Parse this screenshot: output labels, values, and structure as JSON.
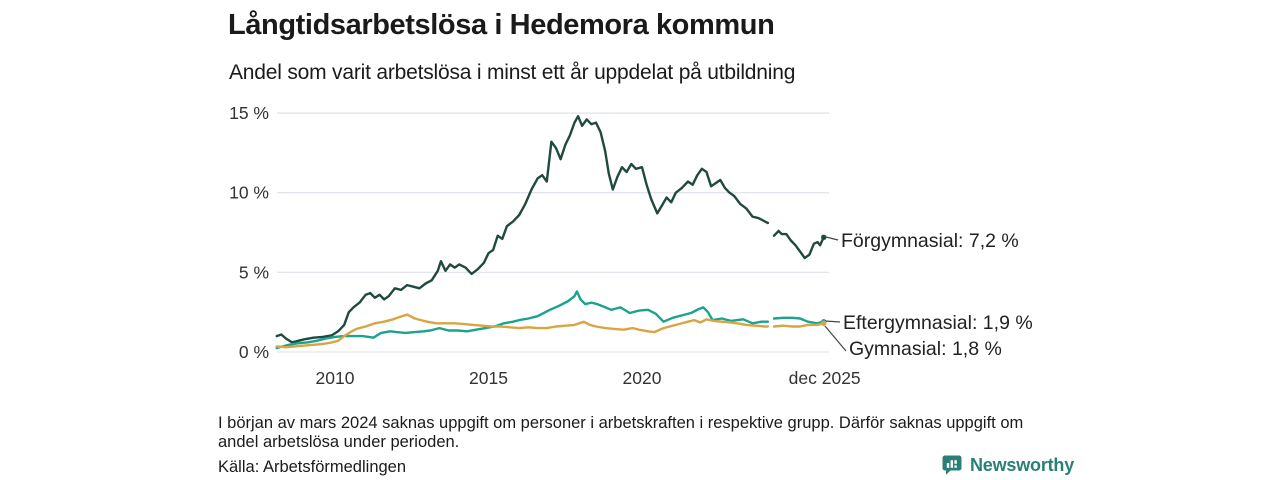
{
  "header": {
    "title": "Långtidsarbetslösa i Hedemora kommun",
    "subtitle": "Andel som varit arbetslösa i minst ett år uppdelat på utbildning"
  },
  "chart_data": {
    "type": "line",
    "title": "Långtidsarbetslösa i Hedemora kommun",
    "subtitle": "Andel som varit arbetslösa i minst ett år uppdelat på utbildning",
    "xlabel": "",
    "ylabel": "",
    "ylim": [
      0,
      15
    ],
    "xlim_years": [
      2008.0,
      2026.2
    ],
    "grid": "horizontal",
    "legend_position": "end-of-line-labels",
    "y_ticks": [
      {
        "value": 0,
        "label": "0 %"
      },
      {
        "value": 5,
        "label": "5 %"
      },
      {
        "value": 10,
        "label": "10 %"
      },
      {
        "value": 15,
        "label": "15 %"
      }
    ],
    "x_ticks": [
      {
        "year": 2010,
        "label": "2010"
      },
      {
        "year": 2015,
        "label": "2015"
      },
      {
        "year": 2020,
        "label": "2020"
      },
      {
        "year": 2025.95,
        "label": "dec 2025"
      }
    ],
    "data_gap_years": [
      2024.1,
      2024.3
    ],
    "series": [
      {
        "name": "Förgymnasial",
        "color": "#204a40",
        "end_label": "Förgymnasial: 7,2 %",
        "end_value": 7.2,
        "segments": [
          [
            [
              2008.1,
              1.0
            ],
            [
              2008.25,
              1.1
            ],
            [
              2008.4,
              0.85
            ],
            [
              2008.6,
              0.6
            ],
            [
              2008.8,
              0.7
            ],
            [
              2009.0,
              0.8
            ],
            [
              2009.3,
              0.9
            ],
            [
              2009.6,
              0.95
            ],
            [
              2009.9,
              1.05
            ],
            [
              2010.1,
              1.3
            ],
            [
              2010.3,
              1.7
            ],
            [
              2010.45,
              2.5
            ],
            [
              2010.6,
              2.8
            ],
            [
              2010.8,
              3.1
            ],
            [
              2011.0,
              3.6
            ],
            [
              2011.15,
              3.7
            ],
            [
              2011.3,
              3.4
            ],
            [
              2011.45,
              3.6
            ],
            [
              2011.6,
              3.3
            ],
            [
              2011.75,
              3.5
            ],
            [
              2011.95,
              4.0
            ],
            [
              2012.15,
              3.9
            ],
            [
              2012.35,
              4.2
            ],
            [
              2012.55,
              4.1
            ],
            [
              2012.75,
              4.0
            ],
            [
              2012.95,
              4.3
            ],
            [
              2013.15,
              4.5
            ],
            [
              2013.35,
              5.1
            ],
            [
              2013.45,
              5.7
            ],
            [
              2013.6,
              5.1
            ],
            [
              2013.75,
              5.5
            ],
            [
              2013.9,
              5.3
            ],
            [
              2014.05,
              5.5
            ],
            [
              2014.25,
              5.3
            ],
            [
              2014.45,
              4.9
            ],
            [
              2014.65,
              5.2
            ],
            [
              2014.85,
              5.6
            ],
            [
              2015.0,
              6.2
            ],
            [
              2015.15,
              6.4
            ],
            [
              2015.3,
              7.3
            ],
            [
              2015.45,
              7.1
            ],
            [
              2015.6,
              7.9
            ],
            [
              2015.8,
              8.2
            ],
            [
              2016.0,
              8.6
            ],
            [
              2016.2,
              9.3
            ],
            [
              2016.4,
              10.2
            ],
            [
              2016.6,
              10.9
            ],
            [
              2016.75,
              11.1
            ],
            [
              2016.9,
              10.7
            ],
            [
              2017.05,
              13.2
            ],
            [
              2017.2,
              12.8
            ],
            [
              2017.35,
              12.1
            ],
            [
              2017.5,
              13.0
            ],
            [
              2017.65,
              13.6
            ],
            [
              2017.8,
              14.4
            ],
            [
              2017.92,
              14.8
            ],
            [
              2018.05,
              14.2
            ],
            [
              2018.2,
              14.6
            ],
            [
              2018.35,
              14.3
            ],
            [
              2018.5,
              14.4
            ],
            [
              2018.65,
              13.8
            ],
            [
              2018.8,
              12.6
            ],
            [
              2018.92,
              11.2
            ],
            [
              2019.05,
              10.2
            ],
            [
              2019.2,
              11.0
            ],
            [
              2019.35,
              11.6
            ],
            [
              2019.5,
              11.3
            ],
            [
              2019.65,
              11.8
            ],
            [
              2019.8,
              11.5
            ],
            [
              2020.0,
              11.6
            ],
            [
              2020.15,
              10.5
            ],
            [
              2020.3,
              9.6
            ],
            [
              2020.5,
              8.7
            ],
            [
              2020.65,
              9.2
            ],
            [
              2020.8,
              9.7
            ],
            [
              2020.95,
              9.4
            ],
            [
              2021.1,
              10.0
            ],
            [
              2021.3,
              10.3
            ],
            [
              2021.5,
              10.7
            ],
            [
              2021.65,
              10.5
            ],
            [
              2021.8,
              11.1
            ],
            [
              2021.95,
              11.5
            ],
            [
              2022.1,
              11.3
            ],
            [
              2022.25,
              10.4
            ],
            [
              2022.4,
              10.6
            ],
            [
              2022.55,
              10.8
            ],
            [
              2022.7,
              10.3
            ],
            [
              2022.85,
              10.0
            ],
            [
              2023.0,
              9.8
            ],
            [
              2023.2,
              9.3
            ],
            [
              2023.4,
              9.0
            ],
            [
              2023.6,
              8.5
            ],
            [
              2023.8,
              8.4
            ],
            [
              2024.0,
              8.2
            ],
            [
              2024.1,
              8.1
            ]
          ],
          [
            [
              2024.3,
              7.3
            ],
            [
              2024.45,
              7.6
            ],
            [
              2024.55,
              7.4
            ],
            [
              2024.7,
              7.4
            ],
            [
              2024.85,
              7.0
            ],
            [
              2025.0,
              6.7
            ],
            [
              2025.15,
              6.3
            ],
            [
              2025.3,
              5.9
            ],
            [
              2025.45,
              6.1
            ],
            [
              2025.6,
              6.8
            ],
            [
              2025.72,
              6.9
            ],
            [
              2025.8,
              6.7
            ],
            [
              2025.92,
              7.2
            ]
          ]
        ]
      },
      {
        "name": "Eftergymnasial",
        "color": "#1aa38f",
        "end_label": "Eftergymnasial: 1,9 %",
        "end_value": 1.9,
        "segments": [
          [
            [
              2008.1,
              0.25
            ],
            [
              2008.3,
              0.35
            ],
            [
              2008.5,
              0.45
            ],
            [
              2008.8,
              0.55
            ],
            [
              2009.1,
              0.6
            ],
            [
              2009.4,
              0.7
            ],
            [
              2009.7,
              0.85
            ],
            [
              2010.0,
              0.95
            ],
            [
              2010.3,
              1.0
            ],
            [
              2010.6,
              1.0
            ],
            [
              2010.9,
              1.0
            ],
            [
              2011.1,
              0.95
            ],
            [
              2011.25,
              0.9
            ],
            [
              2011.5,
              1.2
            ],
            [
              2011.8,
              1.3
            ],
            [
              2012.0,
              1.25
            ],
            [
              2012.3,
              1.2
            ],
            [
              2012.6,
              1.25
            ],
            [
              2012.9,
              1.3
            ],
            [
              2013.1,
              1.35
            ],
            [
              2013.4,
              1.5
            ],
            [
              2013.7,
              1.35
            ],
            [
              2014.0,
              1.35
            ],
            [
              2014.3,
              1.3
            ],
            [
              2014.6,
              1.4
            ],
            [
              2014.9,
              1.5
            ],
            [
              2015.2,
              1.6
            ],
            [
              2015.5,
              1.8
            ],
            [
              2015.8,
              1.9
            ],
            [
              2016.0,
              2.0
            ],
            [
              2016.3,
              2.1
            ],
            [
              2016.6,
              2.25
            ],
            [
              2016.85,
              2.5
            ],
            [
              2017.0,
              2.65
            ],
            [
              2017.3,
              2.9
            ],
            [
              2017.6,
              3.2
            ],
            [
              2017.8,
              3.5
            ],
            [
              2017.88,
              3.8
            ],
            [
              2018.0,
              3.3
            ],
            [
              2018.15,
              3.0
            ],
            [
              2018.35,
              3.1
            ],
            [
              2018.55,
              3.0
            ],
            [
              2018.75,
              2.85
            ],
            [
              2019.0,
              2.65
            ],
            [
              2019.3,
              2.8
            ],
            [
              2019.6,
              2.45
            ],
            [
              2019.9,
              2.6
            ],
            [
              2020.2,
              2.65
            ],
            [
              2020.45,
              2.4
            ],
            [
              2020.7,
              1.9
            ],
            [
              2021.0,
              2.15
            ],
            [
              2021.3,
              2.3
            ],
            [
              2021.6,
              2.45
            ],
            [
              2021.85,
              2.7
            ],
            [
              2022.0,
              2.8
            ],
            [
              2022.15,
              2.5
            ],
            [
              2022.3,
              2.0
            ],
            [
              2022.6,
              2.1
            ],
            [
              2022.9,
              1.95
            ],
            [
              2023.1,
              2.0
            ],
            [
              2023.3,
              2.05
            ],
            [
              2023.6,
              1.8
            ],
            [
              2023.9,
              1.9
            ],
            [
              2024.1,
              1.9
            ]
          ],
          [
            [
              2024.3,
              2.1
            ],
            [
              2024.6,
              2.15
            ],
            [
              2024.9,
              2.15
            ],
            [
              2025.15,
              2.1
            ],
            [
              2025.4,
              1.9
            ],
            [
              2025.7,
              1.8
            ],
            [
              2025.92,
              1.9
            ]
          ]
        ]
      },
      {
        "name": "Gymnasial",
        "color": "#d9a442",
        "end_label": "Gymnasial: 1,8 %",
        "end_value": 1.8,
        "segments": [
          [
            [
              2008.1,
              0.35
            ],
            [
              2008.4,
              0.3
            ],
            [
              2008.7,
              0.35
            ],
            [
              2009.0,
              0.4
            ],
            [
              2009.3,
              0.45
            ],
            [
              2009.6,
              0.5
            ],
            [
              2009.9,
              0.6
            ],
            [
              2010.1,
              0.7
            ],
            [
              2010.3,
              1.0
            ],
            [
              2010.5,
              1.25
            ],
            [
              2010.7,
              1.45
            ],
            [
              2011.0,
              1.6
            ],
            [
              2011.3,
              1.8
            ],
            [
              2011.6,
              1.9
            ],
            [
              2011.9,
              2.05
            ],
            [
              2012.1,
              2.2
            ],
            [
              2012.35,
              2.35
            ],
            [
              2012.6,
              2.1
            ],
            [
              2012.8,
              2.0
            ],
            [
              2013.0,
              1.9
            ],
            [
              2013.3,
              1.8
            ],
            [
              2013.6,
              1.8
            ],
            [
              2013.9,
              1.8
            ],
            [
              2014.2,
              1.75
            ],
            [
              2014.5,
              1.7
            ],
            [
              2014.8,
              1.65
            ],
            [
              2015.1,
              1.6
            ],
            [
              2015.4,
              1.6
            ],
            [
              2015.7,
              1.55
            ],
            [
              2016.0,
              1.5
            ],
            [
              2016.3,
              1.55
            ],
            [
              2016.6,
              1.5
            ],
            [
              2016.9,
              1.5
            ],
            [
              2017.2,
              1.6
            ],
            [
              2017.5,
              1.65
            ],
            [
              2017.8,
              1.7
            ],
            [
              2018.1,
              1.9
            ],
            [
              2018.3,
              1.7
            ],
            [
              2018.5,
              1.6
            ],
            [
              2018.8,
              1.5
            ],
            [
              2019.1,
              1.45
            ],
            [
              2019.4,
              1.4
            ],
            [
              2019.7,
              1.5
            ],
            [
              2019.9,
              1.4
            ],
            [
              2020.2,
              1.3
            ],
            [
              2020.4,
              1.25
            ],
            [
              2020.7,
              1.5
            ],
            [
              2020.9,
              1.6
            ],
            [
              2021.2,
              1.75
            ],
            [
              2021.5,
              1.9
            ],
            [
              2021.7,
              2.0
            ],
            [
              2021.9,
              1.85
            ],
            [
              2022.1,
              2.05
            ],
            [
              2022.35,
              1.95
            ],
            [
              2022.6,
              1.9
            ],
            [
              2022.9,
              1.85
            ],
            [
              2023.1,
              1.8
            ],
            [
              2023.4,
              1.7
            ],
            [
              2023.7,
              1.65
            ],
            [
              2024.0,
              1.6
            ],
            [
              2024.1,
              1.6
            ]
          ],
          [
            [
              2024.3,
              1.6
            ],
            [
              2024.6,
              1.65
            ],
            [
              2024.9,
              1.6
            ],
            [
              2025.15,
              1.6
            ],
            [
              2025.4,
              1.7
            ],
            [
              2025.7,
              1.7
            ],
            [
              2025.92,
              1.8
            ]
          ]
        ]
      }
    ]
  },
  "footnote": {
    "lines": [
      "I början av mars 2024 saknas uppgift om personer i arbetskraften i respektive grupp. Därför saknas uppgift om",
      "andel arbetslösa under perioden."
    ]
  },
  "source": "Källa: Arbetsförmedlingen",
  "brand": {
    "name": "Newsworthy",
    "color": "#2a7f77"
  }
}
